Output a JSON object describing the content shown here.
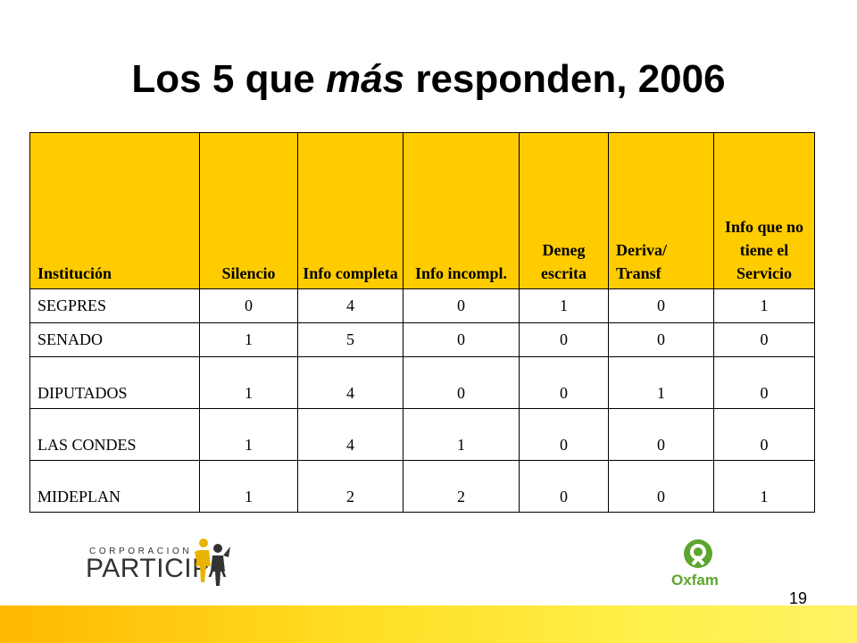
{
  "title": {
    "prefix": "Los 5 que ",
    "emphasis": "más",
    "suffix": " responden, 2006"
  },
  "table": {
    "headers": [
      "Institución",
      "Silencio",
      "Info completa",
      "Info incompl.",
      "Deneg escrita",
      "Deriva/ Transf",
      "Info que no tiene el Servicio"
    ],
    "rows": [
      {
        "name": "SEGPRES",
        "values": [
          "0",
          "4",
          "0",
          "1",
          "0",
          "1"
        ]
      },
      {
        "name": "SENADO",
        "values": [
          "1",
          "5",
          "0",
          "0",
          "0",
          "0"
        ]
      },
      {
        "name": "DIPUTADOS",
        "values": [
          "1",
          "4",
          "0",
          "0",
          "1",
          "0"
        ]
      },
      {
        "name": "LAS CONDES",
        "values": [
          "1",
          "4",
          "1",
          "0",
          "0",
          "0"
        ]
      },
      {
        "name": "MIDEPLAN",
        "values": [
          "1",
          "2",
          "2",
          "0",
          "0",
          "1"
        ]
      }
    ]
  },
  "logos": {
    "participa": {
      "small": "CORPORACION",
      "big": "PARTICIPA"
    },
    "oxfam": {
      "name": "Oxfam"
    }
  },
  "page_number": "19",
  "colors": {
    "header_fill": "#FFCC00",
    "bar_start": "#FFB800",
    "bar_end": "#FFF263",
    "oxfam_green": "#5DA52F"
  }
}
